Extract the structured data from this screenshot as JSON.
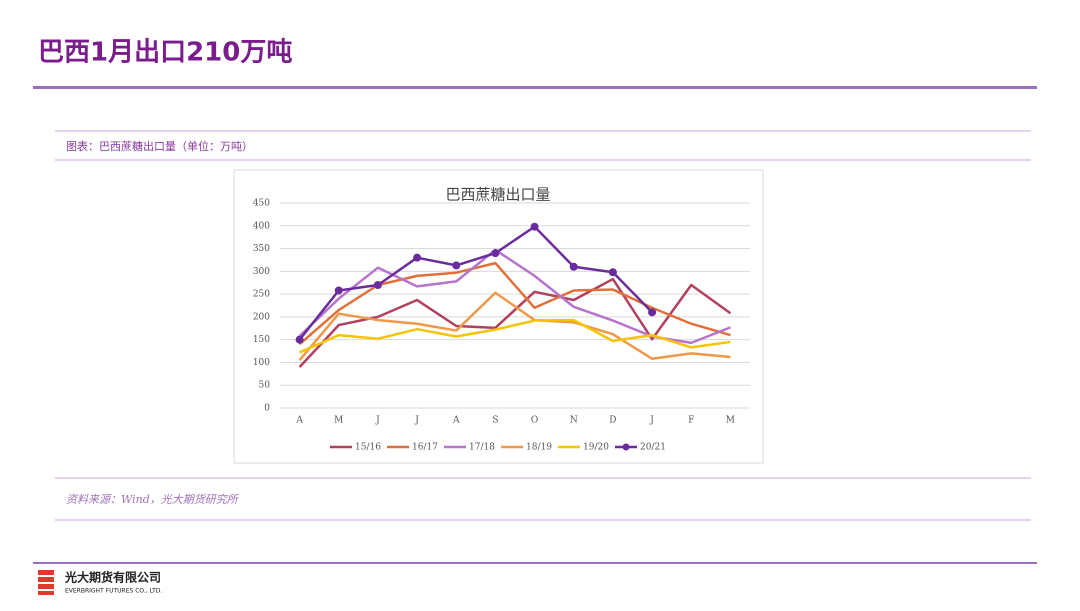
{
  "header": {
    "title": "巴西1月出口210万吨"
  },
  "figure": {
    "caption": "图表：巴西蔗糖出口量（单位：万吨）",
    "source": "资料来源：Wind，光大期货研究所"
  },
  "footer": {
    "company": "光大期货有限公司",
    "company_en": "EVERBRIGHT FUTURES CO., LTD."
  },
  "chart_data": {
    "type": "line",
    "title": "巴西蔗糖出口量",
    "categories": [
      "A",
      "M",
      "J",
      "J",
      "A",
      "S",
      "O",
      "N",
      "D",
      "J",
      "F",
      "M"
    ],
    "series": [
      {
        "name": "15/16",
        "color": "#b0405e",
        "values": [
          90,
          182,
          200,
          237,
          180,
          176,
          255,
          237,
          283,
          151,
          270,
          208
        ]
      },
      {
        "name": "16/17",
        "color": "#e0703a",
        "values": [
          140,
          215,
          270,
          290,
          297,
          318,
          220,
          258,
          260,
          220,
          185,
          160
        ]
      },
      {
        "name": "17/18",
        "color": "#b874cc",
        "values": [
          158,
          240,
          308,
          267,
          278,
          347,
          290,
          222,
          192,
          157,
          143,
          177
        ]
      },
      {
        "name": "18/19",
        "color": "#f0984a",
        "values": [
          105,
          207,
          193,
          185,
          170,
          253,
          193,
          188,
          162,
          108,
          120,
          112
        ]
      },
      {
        "name": "19/20",
        "color": "#f5c400",
        "values": [
          122,
          160,
          152,
          173,
          157,
          172,
          192,
          193,
          147,
          160,
          133,
          145
        ]
      },
      {
        "name": "20/21",
        "color": "#6a2c9c",
        "markers": true,
        "values": [
          150,
          258,
          270,
          330,
          313,
          340,
          398,
          310,
          298,
          210,
          null,
          null
        ]
      }
    ],
    "ylim": [
      0,
      450
    ],
    "yticks": [
      0,
      50,
      100,
      150,
      200,
      250,
      300,
      350,
      400,
      450
    ],
    "grid": true,
    "legend": "bottom"
  }
}
